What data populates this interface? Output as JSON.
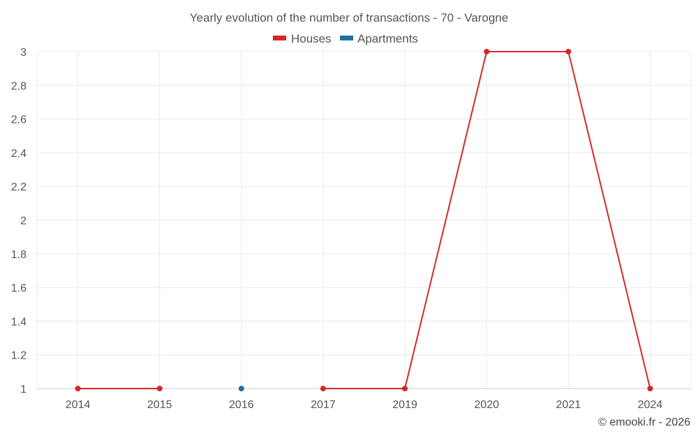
{
  "chart_data": {
    "type": "line",
    "title": "Yearly evolution of the number of transactions - 70 - Varogne",
    "categories": [
      "2014",
      "2015",
      "2016",
      "2017",
      "2019",
      "2020",
      "2021",
      "2024"
    ],
    "series": [
      {
        "name": "Houses",
        "color": "#d62728",
        "values": [
          1,
          1,
          null,
          1,
          1,
          3,
          3,
          1
        ]
      },
      {
        "name": "Apartments",
        "color": "#1f6fa1",
        "values": [
          null,
          null,
          1,
          null,
          null,
          null,
          null,
          null
        ]
      }
    ],
    "ylim": [
      1,
      3
    ],
    "yticks": [
      "1",
      "1.2",
      "1.4",
      "1.6",
      "1.8",
      "2",
      "2.2",
      "2.4",
      "2.6",
      "2.8",
      "3"
    ],
    "xlabel": "",
    "ylabel": "",
    "legend": "top-center",
    "grid": true
  },
  "credit": "© emooki.fr - 2026"
}
